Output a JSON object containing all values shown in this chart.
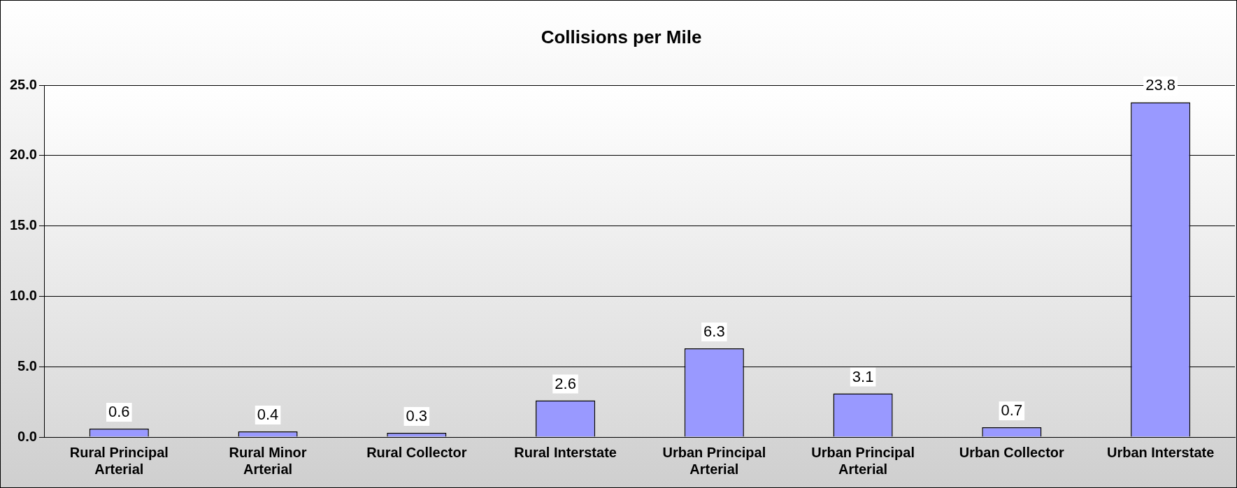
{
  "chart_data": {
    "type": "bar",
    "title": "Collisions per Mile",
    "categories": [
      "Rural Principal Arterial",
      "Rural Minor Arterial",
      "Rural Collector",
      "Rural Interstate",
      "Urban Principal Arterial",
      "Urban Principal Arterial",
      "Urban Collector",
      "Urban Interstate"
    ],
    "values": [
      0.6,
      0.4,
      0.3,
      2.6,
      6.3,
      3.1,
      0.7,
      23.8
    ],
    "color": "#9999ff",
    "ylim": [
      0,
      25
    ],
    "yticks": [
      {
        "value": 0,
        "label": "0.0"
      },
      {
        "value": 5,
        "label": "5.0"
      },
      {
        "value": 10,
        "label": "10.0"
      },
      {
        "value": 15,
        "label": "15.0"
      },
      {
        "value": 20,
        "label": "20.0"
      },
      {
        "value": 25,
        "label": "25.0"
      }
    ],
    "grid": "y",
    "data_labels": true,
    "legend": false
  }
}
